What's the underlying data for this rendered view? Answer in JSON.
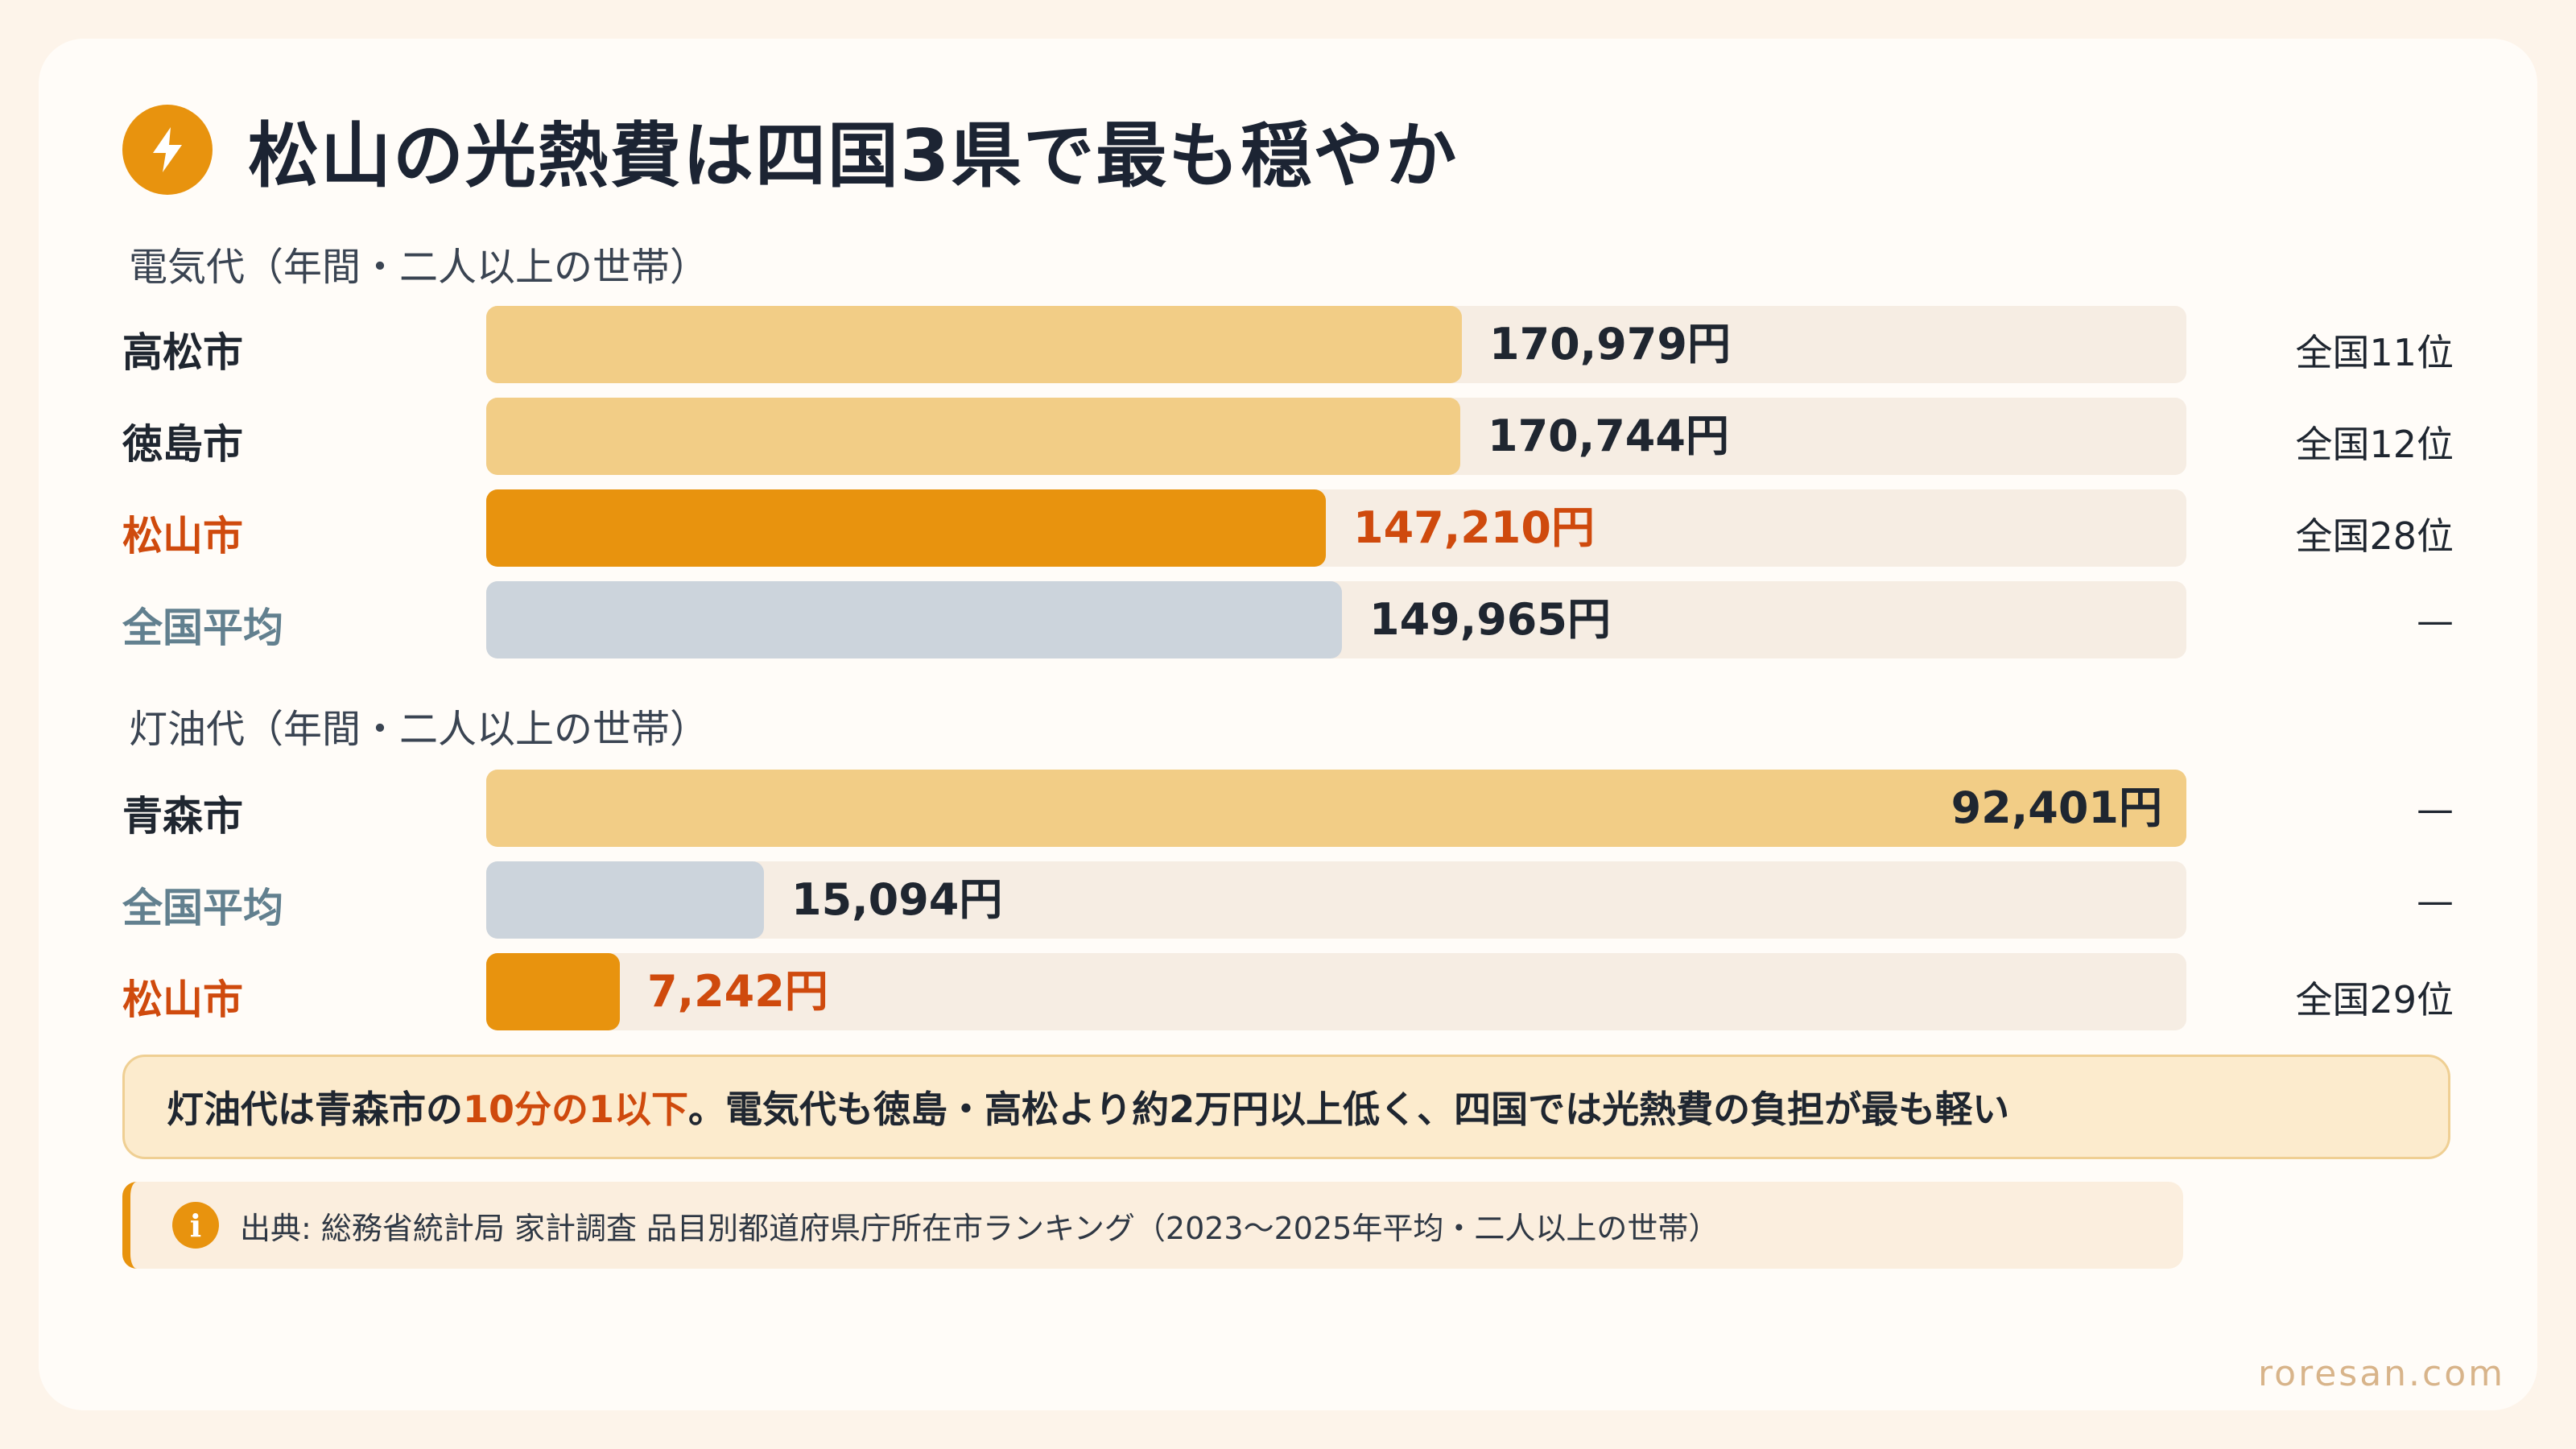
{
  "title": "松山の光熱費は四国3県で最も穏やか",
  "icon": "lightning-bolt-icon",
  "colors": {
    "accent": "#e8930e",
    "highlight_text": "#cf4a0d",
    "bar_normal": "#f2cd86",
    "bar_average": "#ccd4dc",
    "track": "#f6ede3"
  },
  "chart_data": [
    {
      "type": "bar",
      "orientation": "horizontal",
      "title": "電気代（年間・二人以上の世帯）",
      "unit": "円",
      "xlim": [
        0,
        298000
      ],
      "categories": [
        "高松市",
        "徳島市",
        "松山市",
        "全国平均"
      ],
      "values": [
        170979,
        170744,
        147210,
        149965
      ],
      "value_labels": [
        "170,979円",
        "170,744円",
        "147,210円",
        "149,965円"
      ],
      "ranks": [
        "全国11位",
        "全国12位",
        "全国28位",
        "—"
      ],
      "highlight": "松山市",
      "average": "全国平均"
    },
    {
      "type": "bar",
      "orientation": "horizontal",
      "title": "灯油代（年間・二人以上の世帯）",
      "unit": "円",
      "xlim": [
        0,
        92401
      ],
      "categories": [
        "青森市",
        "全国平均",
        "松山市"
      ],
      "values": [
        92401,
        15094,
        7242
      ],
      "value_labels": [
        "92,401円",
        "15,094円",
        "7,242円"
      ],
      "ranks": [
        "—",
        "—",
        "全国29位"
      ],
      "highlight": "松山市",
      "average": "全国平均"
    }
  ],
  "note": {
    "before": "灯油代は青森市の",
    "accent": "10分の1以下",
    "after": "。電気代も徳島・高松より約2万円以上低く、四国では光熱費の負担が最も軽い"
  },
  "source": {
    "icon": "info-icon",
    "text": "出典: 総務省統計局 家計調査 品目別都道府県庁所在市ランキング（2023〜2025年平均・二人以上の世帯）"
  },
  "footer": "roresan.com"
}
